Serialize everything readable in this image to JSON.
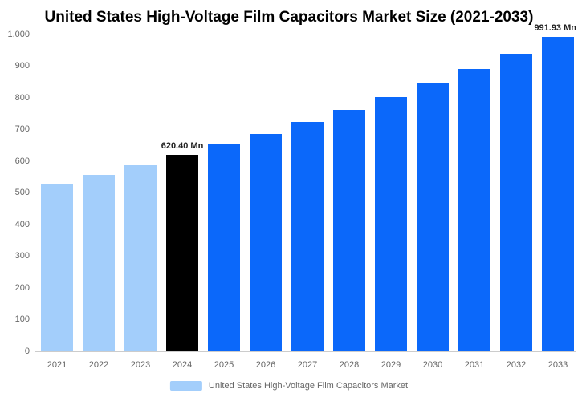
{
  "colors": {
    "light_blue": "#A3CEFB",
    "bright_blue": "#0B68FA",
    "highlight_black": "#000000",
    "axis_line": "#CCCCCC",
    "tick_text": "#666666",
    "annotation_text": "#222222",
    "title_text": "#000000"
  },
  "chart_data": {
    "type": "bar",
    "title": "United States High-Voltage Film Capacitors Market Size (2021-2033)",
    "unit": "Mn",
    "categories": [
      "2021",
      "2022",
      "2023",
      "2024",
      "2025",
      "2026",
      "2027",
      "2028",
      "2029",
      "2030",
      "2031",
      "2032",
      "2033"
    ],
    "series": [
      {
        "name": "United States High-Voltage Film Capacitors Market",
        "values": [
          527,
          557,
          588,
          620.4,
          652,
          687,
          724,
          762,
          803,
          846,
          892,
          940,
          991.93
        ]
      }
    ],
    "bar_colors": [
      "#A3CEFB",
      "#A3CEFB",
      "#A3CEFB",
      "#000000",
      "#0B68FA",
      "#0B68FA",
      "#0B68FA",
      "#0B68FA",
      "#0B68FA",
      "#0B68FA",
      "#0B68FA",
      "#0B68FA",
      "#0B68FA"
    ],
    "annotations": [
      {
        "category": "2024",
        "text": "620.40 Mn"
      },
      {
        "category": "2033",
        "text": "991.93 Mn"
      }
    ],
    "xlabel": "",
    "ylabel": "",
    "ylim": [
      0,
      1000
    ],
    "ytick_labels": [
      "0",
      "100",
      "200",
      "300",
      "400",
      "500",
      "600",
      "700",
      "800",
      "900",
      "1,000"
    ],
    "grid": false,
    "legend_position": "bottom"
  }
}
